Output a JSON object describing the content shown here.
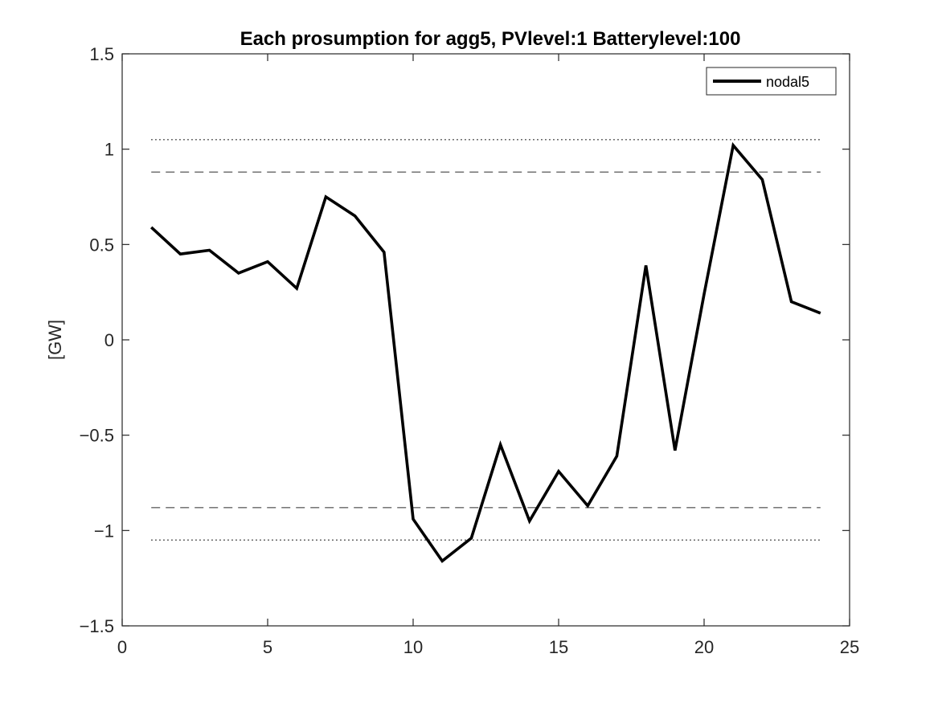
{
  "chart_data": {
    "type": "line",
    "title": "Each prosumption for agg5, PVlevel:1 Batterylevel:100",
    "xlabel": "",
    "ylabel": "[GW]",
    "xlim": [
      0,
      25
    ],
    "ylim": [
      -1.5,
      1.5
    ],
    "xticks": [
      0,
      5,
      10,
      15,
      20,
      25
    ],
    "xtick_labels": [
      "0",
      "5",
      "10",
      "15",
      "20",
      "25"
    ],
    "yticks": [
      -1.5,
      -1,
      -0.5,
      0,
      0.5,
      1,
      1.5
    ],
    "ytick_labels": [
      "−1.5",
      "−1",
      "−0.5",
      "0",
      "0.5",
      "1",
      "1.5"
    ],
    "grid": false,
    "legend_position": "top-right",
    "series": [
      {
        "name": "nodal5",
        "color": "#000000",
        "style": "solid",
        "x": [
          1,
          2,
          3,
          4,
          5,
          6,
          7,
          8,
          9,
          10,
          11,
          12,
          13,
          14,
          15,
          16,
          17,
          18,
          19,
          20,
          21,
          22,
          23,
          24
        ],
        "values": [
          0.59,
          0.45,
          0.47,
          0.35,
          0.41,
          0.27,
          0.75,
          0.65,
          0.46,
          -0.94,
          -1.16,
          -1.04,
          -0.55,
          -0.95,
          -0.69,
          -0.87,
          -0.61,
          0.39,
          -0.58,
          0.24,
          1.02,
          0.84,
          0.2,
          0.14
        ]
      }
    ],
    "reference_lines": [
      {
        "y": 1.05,
        "style": "dotted",
        "color": "#262626",
        "x_range": [
          1,
          24
        ]
      },
      {
        "y": 0.88,
        "style": "dashed",
        "color": "#666666",
        "x_range": [
          1,
          24
        ]
      },
      {
        "y": -0.88,
        "style": "dashed",
        "color": "#666666",
        "x_range": [
          1,
          24
        ]
      },
      {
        "y": -1.05,
        "style": "dotted",
        "color": "#262626",
        "x_range": [
          1,
          24
        ]
      }
    ]
  }
}
